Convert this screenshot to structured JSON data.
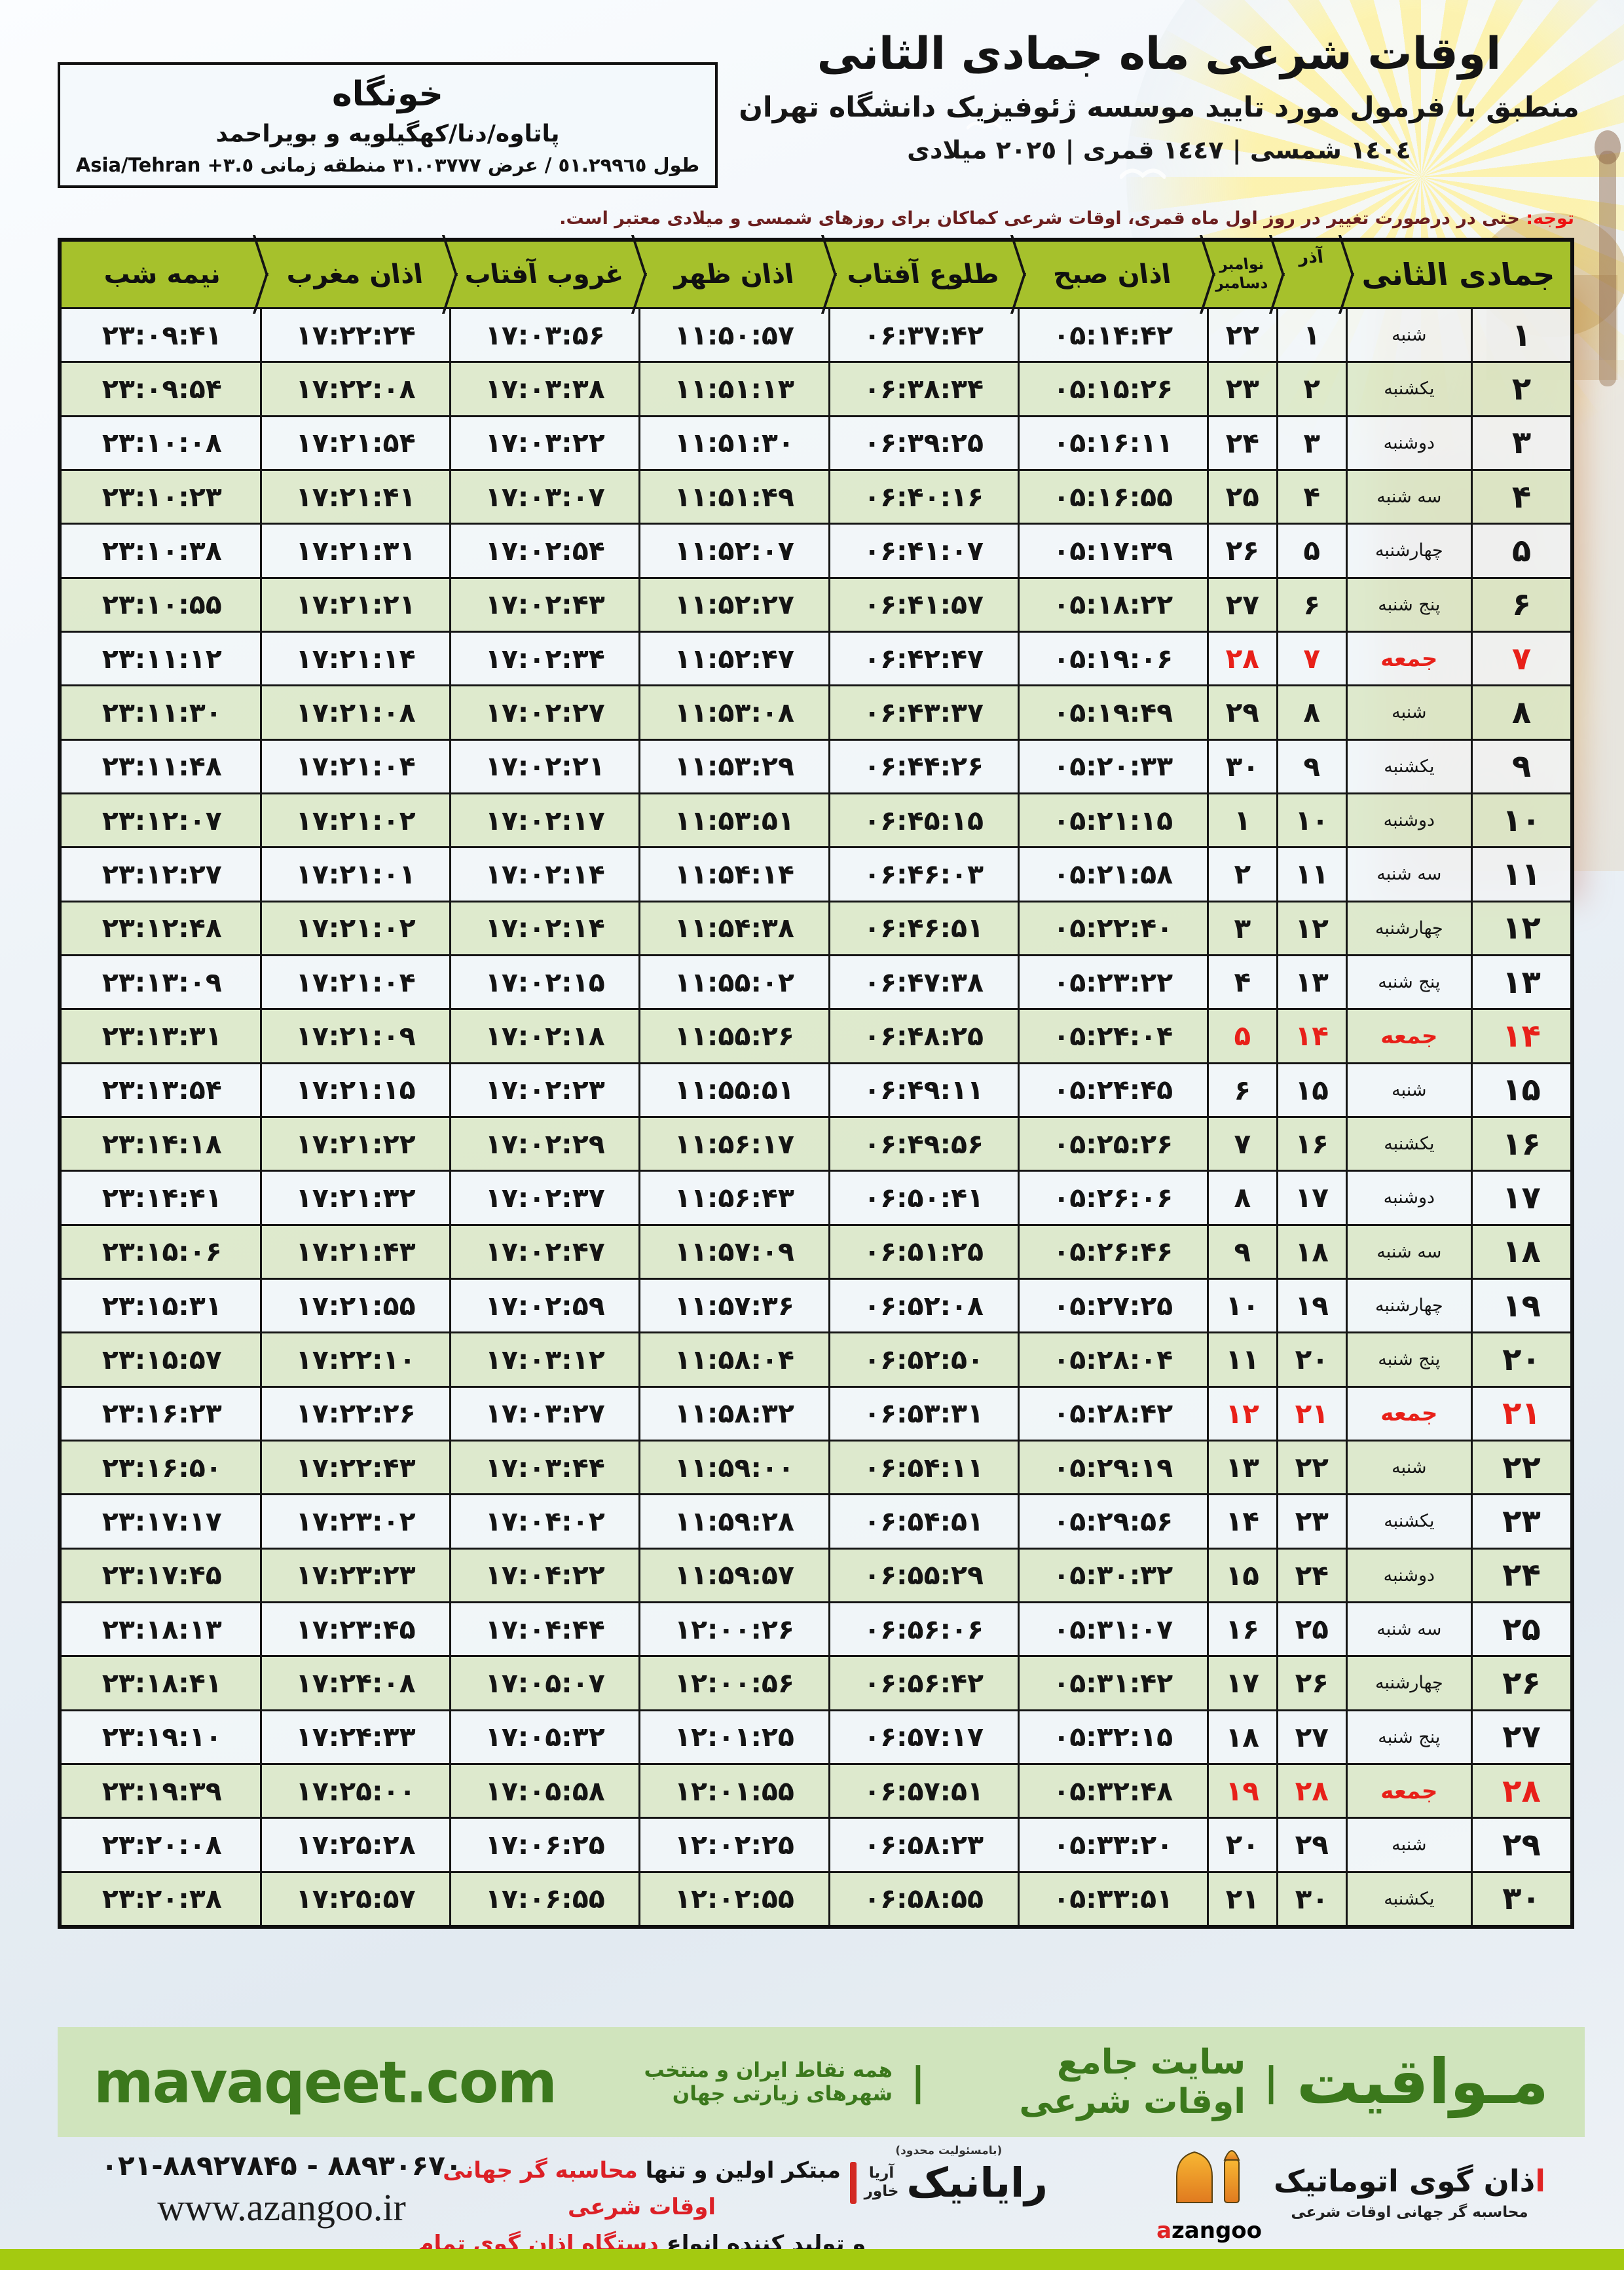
{
  "header": {
    "title": "اوقات شرعی ماه جمادی الثانی",
    "subtitle": "منطبق با فرمول مورد تایید موسسه ژئوفیزیک دانشگاه تهران",
    "dates_line": "١٤٠٤ شمسی | ١٤٤٧ قمری | ٢٠٢٥ میلادی",
    "location": {
      "city": "خونگاه",
      "region": "پاتاوه/دنا/کهگیلویه و بویراحمد",
      "coords_fa": "طول ٥١.٢٩٩٦٥ / عرض ٣١.٠٣٧٧٧ منطقه زمانی",
      "coords_tz": "Asia/Tehran +٣.٥"
    },
    "note_label": "توجه:",
    "note_text": " حتی در درصورت تغییر در روز اول ماه قمری، اوقات شرعی کماکان برای روزهای شمسی و میلادی معتبر است."
  },
  "table": {
    "column_keys": [
      "day",
      "weekday",
      "azar",
      "nov",
      "sobh",
      "tolu",
      "zohr",
      "ghorub",
      "maghreb",
      "nimeshab"
    ],
    "headers": {
      "month": "جمادی الثانی",
      "azar": "آذر",
      "nov": "نوامبر",
      "dec": "دسامبر",
      "sobh": "اذان صبح",
      "tolu": "طلوع آفتاب",
      "zohr": "اذان ظهر",
      "ghorub": "غروب آفتاب",
      "maghreb": "اذان مغرب",
      "nimeshab": "نیمه شب"
    },
    "rows": [
      {
        "day": "۱",
        "weekday": "شنبه",
        "azar": "۱",
        "nov": "۲۲",
        "sobh": "۰۵:۱۴:۴۲",
        "tolu": "۰۶:۳۷:۴۲",
        "zohr": "۱۱:۵۰:۵۷",
        "ghorub": "۱۷:۰۳:۵۶",
        "maghreb": "۱۷:۲۲:۲۴",
        "nimeshab": "۲۳:۰۹:۴۱",
        "friday": false
      },
      {
        "day": "۲",
        "weekday": "یکشنبه",
        "azar": "۲",
        "nov": "۲۳",
        "sobh": "۰۵:۱۵:۲۶",
        "tolu": "۰۶:۳۸:۳۴",
        "zohr": "۱۱:۵۱:۱۳",
        "ghorub": "۱۷:۰۳:۳۸",
        "maghreb": "۱۷:۲۲:۰۸",
        "nimeshab": "۲۳:۰۹:۵۴",
        "friday": false
      },
      {
        "day": "۳",
        "weekday": "دوشنبه",
        "azar": "۳",
        "nov": "۲۴",
        "sobh": "۰۵:۱۶:۱۱",
        "tolu": "۰۶:۳۹:۲۵",
        "zohr": "۱۱:۵۱:۳۰",
        "ghorub": "۱۷:۰۳:۲۲",
        "maghreb": "۱۷:۲۱:۵۴",
        "nimeshab": "۲۳:۱۰:۰۸",
        "friday": false
      },
      {
        "day": "۴",
        "weekday": "سه شنبه",
        "azar": "۴",
        "nov": "۲۵",
        "sobh": "۰۵:۱۶:۵۵",
        "tolu": "۰۶:۴۰:۱۶",
        "zohr": "۱۱:۵۱:۴۹",
        "ghorub": "۱۷:۰۳:۰۷",
        "maghreb": "۱۷:۲۱:۴۱",
        "nimeshab": "۲۳:۱۰:۲۳",
        "friday": false
      },
      {
        "day": "۵",
        "weekday": "چهارشنبه",
        "azar": "۵",
        "nov": "۲۶",
        "sobh": "۰۵:۱۷:۳۹",
        "tolu": "۰۶:۴۱:۰۷",
        "zohr": "۱۱:۵۲:۰۷",
        "ghorub": "۱۷:۰۲:۵۴",
        "maghreb": "۱۷:۲۱:۳۱",
        "nimeshab": "۲۳:۱۰:۳۸",
        "friday": false
      },
      {
        "day": "۶",
        "weekday": "پنج شنبه",
        "azar": "۶",
        "nov": "۲۷",
        "sobh": "۰۵:۱۸:۲۲",
        "tolu": "۰۶:۴۱:۵۷",
        "zohr": "۱۱:۵۲:۲۷",
        "ghorub": "۱۷:۰۲:۴۳",
        "maghreb": "۱۷:۲۱:۲۱",
        "nimeshab": "۲۳:۱۰:۵۵",
        "friday": false
      },
      {
        "day": "۷",
        "weekday": "جمعه",
        "azar": "۷",
        "nov": "۲۸",
        "sobh": "۰۵:۱۹:۰۶",
        "tolu": "۰۶:۴۲:۴۷",
        "zohr": "۱۱:۵۲:۴۷",
        "ghorub": "۱۷:۰۲:۳۴",
        "maghreb": "۱۷:۲۱:۱۴",
        "nimeshab": "۲۳:۱۱:۱۲",
        "friday": true
      },
      {
        "day": "۸",
        "weekday": "شنبه",
        "azar": "۸",
        "nov": "۲۹",
        "sobh": "۰۵:۱۹:۴۹",
        "tolu": "۰۶:۴۳:۳۷",
        "zohr": "۱۱:۵۳:۰۸",
        "ghorub": "۱۷:۰۲:۲۷",
        "maghreb": "۱۷:۲۱:۰۸",
        "nimeshab": "۲۳:۱۱:۳۰",
        "friday": false
      },
      {
        "day": "۹",
        "weekday": "یکشنبه",
        "azar": "۹",
        "nov": "۳۰",
        "sobh": "۰۵:۲۰:۳۳",
        "tolu": "۰۶:۴۴:۲۶",
        "zohr": "۱۱:۵۳:۲۹",
        "ghorub": "۱۷:۰۲:۲۱",
        "maghreb": "۱۷:۲۱:۰۴",
        "nimeshab": "۲۳:۱۱:۴۸",
        "friday": false
      },
      {
        "day": "۱۰",
        "weekday": "دوشنبه",
        "azar": "۱۰",
        "nov": "۱",
        "sobh": "۰۵:۲۱:۱۵",
        "tolu": "۰۶:۴۵:۱۵",
        "zohr": "۱۱:۵۳:۵۱",
        "ghorub": "۱۷:۰۲:۱۷",
        "maghreb": "۱۷:۲۱:۰۲",
        "nimeshab": "۲۳:۱۲:۰۷",
        "friday": false
      },
      {
        "day": "۱۱",
        "weekday": "سه شنبه",
        "azar": "۱۱",
        "nov": "۲",
        "sobh": "۰۵:۲۱:۵۸",
        "tolu": "۰۶:۴۶:۰۳",
        "zohr": "۱۱:۵۴:۱۴",
        "ghorub": "۱۷:۰۲:۱۴",
        "maghreb": "۱۷:۲۱:۰۱",
        "nimeshab": "۲۳:۱۲:۲۷",
        "friday": false
      },
      {
        "day": "۱۲",
        "weekday": "چهارشنبه",
        "azar": "۱۲",
        "nov": "۳",
        "sobh": "۰۵:۲۲:۴۰",
        "tolu": "۰۶:۴۶:۵۱",
        "zohr": "۱۱:۵۴:۳۸",
        "ghorub": "۱۷:۰۲:۱۴",
        "maghreb": "۱۷:۲۱:۰۲",
        "nimeshab": "۲۳:۱۲:۴۸",
        "friday": false
      },
      {
        "day": "۱۳",
        "weekday": "پنج شنبه",
        "azar": "۱۳",
        "nov": "۴",
        "sobh": "۰۵:۲۳:۲۲",
        "tolu": "۰۶:۴۷:۳۸",
        "zohr": "۱۱:۵۵:۰۲",
        "ghorub": "۱۷:۰۲:۱۵",
        "maghreb": "۱۷:۲۱:۰۴",
        "nimeshab": "۲۳:۱۳:۰۹",
        "friday": false
      },
      {
        "day": "۱۴",
        "weekday": "جمعه",
        "azar": "۱۴",
        "nov": "۵",
        "sobh": "۰۵:۲۴:۰۴",
        "tolu": "۰۶:۴۸:۲۵",
        "zohr": "۱۱:۵۵:۲۶",
        "ghorub": "۱۷:۰۲:۱۸",
        "maghreb": "۱۷:۲۱:۰۹",
        "nimeshab": "۲۳:۱۳:۳۱",
        "friday": true
      },
      {
        "day": "۱۵",
        "weekday": "شنبه",
        "azar": "۱۵",
        "nov": "۶",
        "sobh": "۰۵:۲۴:۴۵",
        "tolu": "۰۶:۴۹:۱۱",
        "zohr": "۱۱:۵۵:۵۱",
        "ghorub": "۱۷:۰۲:۲۳",
        "maghreb": "۱۷:۲۱:۱۵",
        "nimeshab": "۲۳:۱۳:۵۴",
        "friday": false
      },
      {
        "day": "۱۶",
        "weekday": "یکشنبه",
        "azar": "۱۶",
        "nov": "۷",
        "sobh": "۰۵:۲۵:۲۶",
        "tolu": "۰۶:۴۹:۵۶",
        "zohr": "۱۱:۵۶:۱۷",
        "ghorub": "۱۷:۰۲:۲۹",
        "maghreb": "۱۷:۲۱:۲۲",
        "nimeshab": "۲۳:۱۴:۱۸",
        "friday": false
      },
      {
        "day": "۱۷",
        "weekday": "دوشنبه",
        "azar": "۱۷",
        "nov": "۸",
        "sobh": "۰۵:۲۶:۰۶",
        "tolu": "۰۶:۵۰:۴۱",
        "zohr": "۱۱:۵۶:۴۳",
        "ghorub": "۱۷:۰۲:۳۷",
        "maghreb": "۱۷:۲۱:۳۲",
        "nimeshab": "۲۳:۱۴:۴۱",
        "friday": false
      },
      {
        "day": "۱۸",
        "weekday": "سه شنبه",
        "azar": "۱۸",
        "nov": "۹",
        "sobh": "۰۵:۲۶:۴۶",
        "tolu": "۰۶:۵۱:۲۵",
        "zohr": "۱۱:۵۷:۰۹",
        "ghorub": "۱۷:۰۲:۴۷",
        "maghreb": "۱۷:۲۱:۴۳",
        "nimeshab": "۲۳:۱۵:۰۶",
        "friday": false
      },
      {
        "day": "۱۹",
        "weekday": "چهارشنبه",
        "azar": "۱۹",
        "nov": "۱۰",
        "sobh": "۰۵:۲۷:۲۵",
        "tolu": "۰۶:۵۲:۰۸",
        "zohr": "۱۱:۵۷:۳۶",
        "ghorub": "۱۷:۰۲:۵۹",
        "maghreb": "۱۷:۲۱:۵۵",
        "nimeshab": "۲۳:۱۵:۳۱",
        "friday": false
      },
      {
        "day": "۲۰",
        "weekday": "پنج شنبه",
        "azar": "۲۰",
        "nov": "۱۱",
        "sobh": "۰۵:۲۸:۰۴",
        "tolu": "۰۶:۵۲:۵۰",
        "zohr": "۱۱:۵۸:۰۴",
        "ghorub": "۱۷:۰۳:۱۲",
        "maghreb": "۱۷:۲۲:۱۰",
        "nimeshab": "۲۳:۱۵:۵۷",
        "friday": false
      },
      {
        "day": "۲۱",
        "weekday": "جمعه",
        "azar": "۲۱",
        "nov": "۱۲",
        "sobh": "۰۵:۲۸:۴۲",
        "tolu": "۰۶:۵۳:۳۱",
        "zohr": "۱۱:۵۸:۳۲",
        "ghorub": "۱۷:۰۳:۲۷",
        "maghreb": "۱۷:۲۲:۲۶",
        "nimeshab": "۲۳:۱۶:۲۳",
        "friday": true
      },
      {
        "day": "۲۲",
        "weekday": "شنبه",
        "azar": "۲۲",
        "nov": "۱۳",
        "sobh": "۰۵:۲۹:۱۹",
        "tolu": "۰۶:۵۴:۱۱",
        "zohr": "۱۱:۵۹:۰۰",
        "ghorub": "۱۷:۰۳:۴۴",
        "maghreb": "۱۷:۲۲:۴۳",
        "nimeshab": "۲۳:۱۶:۵۰",
        "friday": false
      },
      {
        "day": "۲۳",
        "weekday": "یکشنبه",
        "azar": "۲۳",
        "nov": "۱۴",
        "sobh": "۰۵:۲۹:۵۶",
        "tolu": "۰۶:۵۴:۵۱",
        "zohr": "۱۱:۵۹:۲۸",
        "ghorub": "۱۷:۰۴:۰۲",
        "maghreb": "۱۷:۲۳:۰۲",
        "nimeshab": "۲۳:۱۷:۱۷",
        "friday": false
      },
      {
        "day": "۲۴",
        "weekday": "دوشنبه",
        "azar": "۲۴",
        "nov": "۱۵",
        "sobh": "۰۵:۳۰:۳۲",
        "tolu": "۰۶:۵۵:۲۹",
        "zohr": "۱۱:۵۹:۵۷",
        "ghorub": "۱۷:۰۴:۲۲",
        "maghreb": "۱۷:۲۳:۲۳",
        "nimeshab": "۲۳:۱۷:۴۵",
        "friday": false
      },
      {
        "day": "۲۵",
        "weekday": "سه شنبه",
        "azar": "۲۵",
        "nov": "۱۶",
        "sobh": "۰۵:۳۱:۰۷",
        "tolu": "۰۶:۵۶:۰۶",
        "zohr": "۱۲:۰۰:۲۶",
        "ghorub": "۱۷:۰۴:۴۴",
        "maghreb": "۱۷:۲۳:۴۵",
        "nimeshab": "۲۳:۱۸:۱۳",
        "friday": false
      },
      {
        "day": "۲۶",
        "weekday": "چهارشنبه",
        "azar": "۲۶",
        "nov": "۱۷",
        "sobh": "۰۵:۳۱:۴۲",
        "tolu": "۰۶:۵۶:۴۲",
        "zohr": "۱۲:۰۰:۵۶",
        "ghorub": "۱۷:۰۵:۰۷",
        "maghreb": "۱۷:۲۴:۰۸",
        "nimeshab": "۲۳:۱۸:۴۱",
        "friday": false
      },
      {
        "day": "۲۷",
        "weekday": "پنج شنبه",
        "azar": "۲۷",
        "nov": "۱۸",
        "sobh": "۰۵:۳۲:۱۵",
        "tolu": "۰۶:۵۷:۱۷",
        "zohr": "۱۲:۰۱:۲۵",
        "ghorub": "۱۷:۰۵:۳۲",
        "maghreb": "۱۷:۲۴:۳۳",
        "nimeshab": "۲۳:۱۹:۱۰",
        "friday": false
      },
      {
        "day": "۲۸",
        "weekday": "جمعه",
        "azar": "۲۸",
        "nov": "۱۹",
        "sobh": "۰۵:۳۲:۴۸",
        "tolu": "۰۶:۵۷:۵۱",
        "zohr": "۱۲:۰۱:۵۵",
        "ghorub": "۱۷:۰۵:۵۸",
        "maghreb": "۱۷:۲۵:۰۰",
        "nimeshab": "۲۳:۱۹:۳۹",
        "friday": true
      },
      {
        "day": "۲۹",
        "weekday": "شنبه",
        "azar": "۲۹",
        "nov": "۲۰",
        "sobh": "۰۵:۳۳:۲۰",
        "tolu": "۰۶:۵۸:۲۳",
        "zohr": "۱۲:۰۲:۲۵",
        "ghorub": "۱۷:۰۶:۲۵",
        "maghreb": "۱۷:۲۵:۲۸",
        "nimeshab": "۲۳:۲۰:۰۸",
        "friday": false
      },
      {
        "day": "۳۰",
        "weekday": "یکشنبه",
        "azar": "۳۰",
        "nov": "۲۱",
        "sobh": "۰۵:۳۳:۵۱",
        "tolu": "۰۶:۵۸:۵۵",
        "zohr": "۱۲:۰۲:۵۵",
        "ghorub": "۱۷:۰۶:۵۵",
        "maghreb": "۱۷:۲۵:۵۷",
        "nimeshab": "۲۳:۲۰:۳۸",
        "friday": false
      }
    ]
  },
  "footer": {
    "site_fa": "مـواقیت",
    "site_sep": "|",
    "site_desc1": "سایت جامع اوقات شرعی",
    "site_desc2": "همه نقاط ایران و منتخب شهرهای زیارتی جهان",
    "site_en": "mavaqeet.com",
    "phones": "۰۲۱-۸۸۹۲۷۸۴۵ - ۸۸۹۳۰۶۷۰",
    "website": "www.azangoo.ir",
    "tagline1_black": "مبتکر اولین و تنها ",
    "tagline1_red": "محاسبه گر جهانی اوقات شرعی",
    "tagline2_black": "و تولید کننده انواع ",
    "tagline2_red": "دستگاه اذان گوی تمام خودکار ماهواره ای",
    "rayanik_small": "(بامسئولیت محدود)",
    "rayanik_name": "رایانیک",
    "rayanik_sub1": "آریا",
    "rayanik_sub2": "خاور",
    "azangoo_fa_init": "ا",
    "azangoo_fa_rest": "ذان گوی اتوماتیک",
    "azangoo_fa_sub": "محاسبه گر جهانی اوقات شرعی",
    "azangoo_latin_a": "a",
    "azangoo_latin_rest": "zangoo"
  }
}
